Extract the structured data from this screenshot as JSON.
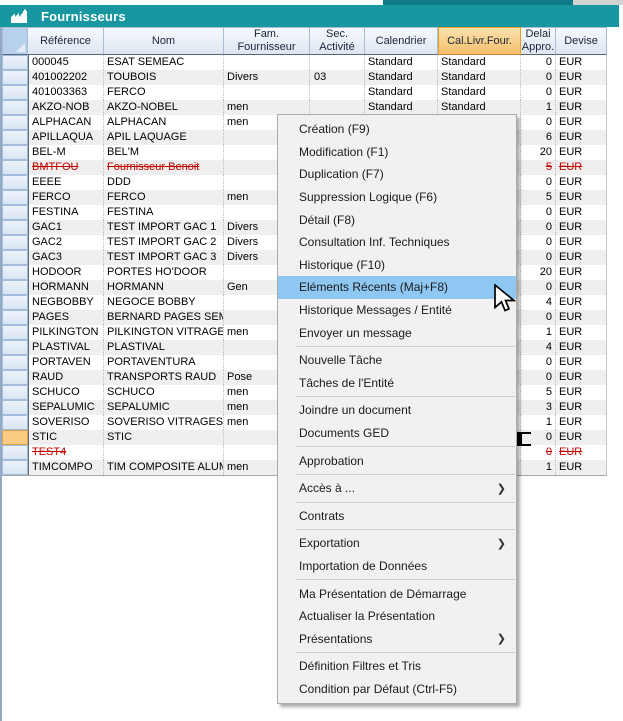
{
  "window": {
    "title": "Fournisseurs"
  },
  "table": {
    "columns": [
      {
        "label": ""
      },
      {
        "label": "Référence"
      },
      {
        "label": "Nom"
      },
      {
        "label": "Fam. Fournisseur"
      },
      {
        "label": "Sec.\nActivité"
      },
      {
        "label": "Calendrier"
      },
      {
        "label": "Cal.Livr.Four.",
        "highlighted": true
      },
      {
        "label": "Delai\nAppro."
      },
      {
        "label": "Devise"
      }
    ],
    "rows": [
      {
        "ref": "000045",
        "nom": "ESAT SEMEAC",
        "fam": "",
        "sec": "",
        "cal": "Standard",
        "clf": "Standard",
        "delai": "0",
        "dev": "EUR"
      },
      {
        "ref": "401002202",
        "nom": "TOUBOIS",
        "fam": "Divers",
        "sec": "03",
        "cal": "Standard",
        "clf": "Standard",
        "delai": "0",
        "dev": "EUR"
      },
      {
        "ref": "401003363",
        "nom": "FERCO",
        "fam": "",
        "sec": "",
        "cal": "Standard",
        "clf": "Standard",
        "delai": "0",
        "dev": "EUR"
      },
      {
        "ref": "AKZO-NOB",
        "nom": "AKZO-NOBEL",
        "fam": "men",
        "sec": "",
        "cal": "Standard",
        "clf": "Standard",
        "delai": "1",
        "dev": "EUR"
      },
      {
        "ref": "ALPHACAN",
        "nom": "ALPHACAN",
        "fam": "men",
        "sec": "",
        "cal": "",
        "clf": "",
        "delai": "0",
        "dev": "EUR"
      },
      {
        "ref": "APILLAQUA",
        "nom": "APIL LAQUAGE",
        "fam": "",
        "sec": "",
        "cal": "",
        "clf": "",
        "delai": "6",
        "dev": "EUR"
      },
      {
        "ref": "BEL-M",
        "nom": "BEL'M",
        "fam": "",
        "sec": "",
        "cal": "",
        "clf": "",
        "delai": "20",
        "dev": "EUR"
      },
      {
        "ref": "BMTFOU",
        "nom": "Fournisseur Benoit",
        "fam": "",
        "sec": "",
        "cal": "",
        "clf": "",
        "delai": "5",
        "dev": "EUR",
        "deleted": true
      },
      {
        "ref": "EEEE",
        "nom": "DDD",
        "fam": "",
        "sec": "",
        "cal": "",
        "clf": "",
        "delai": "0",
        "dev": "EUR"
      },
      {
        "ref": "FERCO",
        "nom": "FERCO",
        "fam": "men",
        "sec": "",
        "cal": "",
        "clf": "",
        "delai": "5",
        "dev": "EUR"
      },
      {
        "ref": "FESTINA",
        "nom": "FESTINA",
        "fam": "",
        "sec": "",
        "cal": "",
        "clf": "",
        "delai": "0",
        "dev": "EUR"
      },
      {
        "ref": "GAC1",
        "nom": "TEST IMPORT GAC 1",
        "fam": "Divers",
        "sec": "",
        "cal": "",
        "clf": "",
        "delai": "0",
        "dev": "EUR"
      },
      {
        "ref": "GAC2",
        "nom": "TEST IMPORT GAC 2",
        "fam": "Divers",
        "sec": "",
        "cal": "",
        "clf": "",
        "delai": "0",
        "dev": "EUR"
      },
      {
        "ref": "GAC3",
        "nom": "TEST IMPORT GAC 3",
        "fam": "Divers",
        "sec": "",
        "cal": "",
        "clf": "",
        "delai": "0",
        "dev": "EUR"
      },
      {
        "ref": "HODOOR",
        "nom": "PORTES HO'DOOR",
        "fam": "",
        "sec": "",
        "cal": "",
        "clf": "",
        "delai": "20",
        "dev": "EUR"
      },
      {
        "ref": "HORMANN",
        "nom": "HORMANN",
        "fam": "Gen",
        "sec": "",
        "cal": "",
        "clf": "",
        "delai": "0",
        "dev": "EUR"
      },
      {
        "ref": "NEGBOBBY",
        "nom": "NEGOCE BOBBY",
        "fam": "",
        "sec": "",
        "cal": "",
        "clf": "",
        "delai": "4",
        "dev": "EUR"
      },
      {
        "ref": "PAGES",
        "nom": "BERNARD PAGES SEMEAC",
        "fam": "",
        "sec": "",
        "cal": "",
        "clf": "",
        "delai": "0",
        "dev": "EUR"
      },
      {
        "ref": "PILKINGTON",
        "nom": "PILKINGTON VITRAGES",
        "fam": "men",
        "sec": "",
        "cal": "",
        "clf": "",
        "delai": "1",
        "dev": "EUR"
      },
      {
        "ref": "PLASTIVAL",
        "nom": "PLASTIVAL",
        "fam": "",
        "sec": "",
        "cal": "",
        "clf": "",
        "delai": "4",
        "dev": "EUR"
      },
      {
        "ref": "PORTAVEN",
        "nom": "PORTAVENTURA",
        "fam": "",
        "sec": "",
        "cal": "",
        "clf": "",
        "delai": "0",
        "dev": "EUR"
      },
      {
        "ref": "RAUD",
        "nom": "TRANSPORTS RAUD",
        "fam": "Pose",
        "sec": "",
        "cal": "",
        "clf": "",
        "delai": "0",
        "dev": "EUR"
      },
      {
        "ref": "SCHUCO",
        "nom": "SCHUCO",
        "fam": "men",
        "sec": "",
        "cal": "",
        "clf": "",
        "delai": "5",
        "dev": "EUR"
      },
      {
        "ref": "SEPALUMIC",
        "nom": "SEPALUMIC",
        "fam": "men",
        "sec": "",
        "cal": "",
        "clf": "",
        "delai": "3",
        "dev": "EUR"
      },
      {
        "ref": "SOVERISO",
        "nom": "SOVERISO VITRAGES",
        "fam": "men",
        "sec": "",
        "cal": "",
        "clf": "",
        "delai": "1",
        "dev": "EUR"
      },
      {
        "ref": "STIC",
        "nom": "STIC",
        "fam": "",
        "sec": "",
        "cal": "",
        "clf": "",
        "delai": "0",
        "dev": "EUR",
        "selected": true
      },
      {
        "ref": "TEST4",
        "nom": "",
        "fam": "",
        "sec": "",
        "cal": "",
        "clf": "",
        "delai": "0",
        "dev": "EUR",
        "deleted": true
      },
      {
        "ref": "TIMCOMPO",
        "nom": "TIM COMPOSITE ALUMINIUM",
        "fam": "men",
        "sec": "",
        "cal": "",
        "clf": "",
        "delai": "1",
        "dev": "EUR"
      }
    ]
  },
  "menu": {
    "items": [
      {
        "label": "Création (F9)"
      },
      {
        "label": "Modification (F1)"
      },
      {
        "label": "Duplication (F7)"
      },
      {
        "label": "Suppression Logique (F6)"
      },
      {
        "label": "Détail (F8)"
      },
      {
        "label": "Consultation Inf. Techniques"
      },
      {
        "label": "Historique (F10)"
      },
      {
        "label": "Eléments Récents (Maj+F8)",
        "highlighted": true
      },
      {
        "label": "Historique Messages / Entité"
      },
      {
        "label": "Envoyer un message"
      },
      {
        "separator": true
      },
      {
        "label": "Nouvelle Tâche"
      },
      {
        "label": "Tâches de l'Entité"
      },
      {
        "separator": true
      },
      {
        "label": "Joindre un document"
      },
      {
        "label": "Documents GED"
      },
      {
        "separator": true
      },
      {
        "label": "Approbation"
      },
      {
        "separator": true
      },
      {
        "label": "Accès à ...",
        "submenu": true
      },
      {
        "separator": true
      },
      {
        "label": "Contrats"
      },
      {
        "separator": true
      },
      {
        "label": "Exportation",
        "submenu": true
      },
      {
        "label": "Importation de Données"
      },
      {
        "separator": true
      },
      {
        "label": "Ma Présentation de Démarrage"
      },
      {
        "label": "Actualiser la Présentation"
      },
      {
        "label": "Présentations",
        "submenu": true
      },
      {
        "separator": true
      },
      {
        "label": "Définition Filtres et Tris"
      },
      {
        "label": "Condition par Défaut (Ctrl-F5)"
      }
    ]
  },
  "icons": {
    "submenu_arrow": "❯"
  },
  "colors": {
    "titlebar_teal": "#1997a1",
    "highlighted_column_orange": "#f4bf6b",
    "selected_row_orange": "#fbcb83",
    "menu_highlight_blue": "#8fc7f3",
    "deleted_red": "#c00000",
    "row_alt_grey": "#efefef"
  }
}
